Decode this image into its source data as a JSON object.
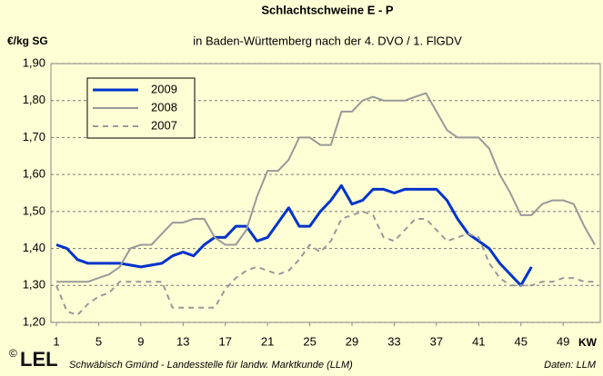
{
  "chart_data": {
    "type": "line",
    "title": "Schlachtschweine E - P",
    "subtitle": "in Baden-Württemberg nach der 4. DVO / 1. FlGDV",
    "y_label": "€/kg SG",
    "x_label": "KW",
    "logo": "LEL",
    "copyright": "©",
    "source": "Schwäbisch Gmünd - Landesstelle für landw. Marktkunde (LLM)",
    "data_credit": "Daten: LLM",
    "x": [
      1,
      2,
      3,
      4,
      5,
      6,
      7,
      8,
      9,
      10,
      11,
      12,
      13,
      14,
      15,
      16,
      17,
      18,
      19,
      20,
      21,
      22,
      23,
      24,
      25,
      26,
      27,
      28,
      29,
      30,
      31,
      32,
      33,
      34,
      35,
      36,
      37,
      38,
      39,
      40,
      41,
      42,
      43,
      44,
      45,
      46,
      47,
      48,
      49,
      50,
      51,
      52
    ],
    "xlim": [
      1,
      52
    ],
    "xticks": [
      1,
      5,
      9,
      13,
      17,
      21,
      25,
      29,
      33,
      37,
      41,
      45,
      49
    ],
    "ylim": [
      1.2,
      1.9
    ],
    "yticks": [
      {
        "value": 1.2,
        "label": "1,20"
      },
      {
        "value": 1.3,
        "label": "1,30"
      },
      {
        "value": 1.4,
        "label": "1,40"
      },
      {
        "value": 1.5,
        "label": "1,50"
      },
      {
        "value": 1.6,
        "label": "1,60"
      },
      {
        "value": 1.7,
        "label": "1,70"
      },
      {
        "value": 1.8,
        "label": "1,80"
      },
      {
        "value": 1.9,
        "label": "1,90"
      }
    ],
    "grid": true,
    "legend": "upper left",
    "series": [
      {
        "name": "2009",
        "color": "#0033cc",
        "style": "solid",
        "width": 3,
        "values": [
          1.41,
          1.4,
          1.37,
          1.36,
          1.36,
          1.36,
          1.36,
          1.355,
          1.35,
          1.355,
          1.36,
          1.38,
          1.39,
          1.38,
          1.41,
          1.43,
          1.43,
          1.46,
          1.46,
          1.42,
          1.43,
          1.47,
          1.51,
          1.46,
          1.46,
          1.5,
          1.53,
          1.57,
          1.52,
          1.53,
          1.56,
          1.56,
          1.55,
          1.56,
          1.56,
          1.56,
          1.56,
          1.53,
          1.48,
          1.44,
          1.42,
          1.4,
          1.36,
          1.33,
          1.3,
          1.35,
          null,
          null,
          null,
          null,
          null,
          null
        ]
      },
      {
        "name": "2008",
        "color": "#999999",
        "style": "solid",
        "width": 2,
        "values": [
          1.31,
          1.31,
          1.31,
          1.31,
          1.32,
          1.33,
          1.35,
          1.4,
          1.41,
          1.41,
          1.44,
          1.47,
          1.47,
          1.48,
          1.48,
          1.43,
          1.41,
          1.41,
          1.45,
          1.54,
          1.61,
          1.61,
          1.64,
          1.7,
          1.7,
          1.68,
          1.68,
          1.77,
          1.77,
          1.8,
          1.81,
          1.8,
          1.8,
          1.8,
          1.81,
          1.82,
          1.77,
          1.72,
          1.7,
          1.7,
          1.7,
          1.67,
          1.6,
          1.55,
          1.49,
          1.49,
          1.52,
          1.53,
          1.53,
          1.52,
          1.46,
          1.41
        ]
      },
      {
        "name": "2007",
        "color": "#999999",
        "style": "dashed",
        "width": 2,
        "values": [
          1.3,
          1.23,
          1.22,
          1.25,
          1.27,
          1.28,
          1.31,
          1.31,
          1.31,
          1.31,
          1.31,
          1.24,
          1.24,
          1.24,
          1.24,
          1.24,
          1.29,
          1.32,
          1.34,
          1.35,
          1.34,
          1.33,
          1.34,
          1.37,
          1.41,
          1.39,
          1.42,
          1.48,
          1.49,
          1.5,
          1.49,
          1.43,
          1.42,
          1.45,
          1.48,
          1.48,
          1.45,
          1.42,
          1.43,
          1.44,
          1.43,
          1.36,
          1.32,
          1.3,
          1.3,
          1.3,
          1.31,
          1.31,
          1.32,
          1.32,
          1.31,
          1.31
        ]
      }
    ]
  }
}
